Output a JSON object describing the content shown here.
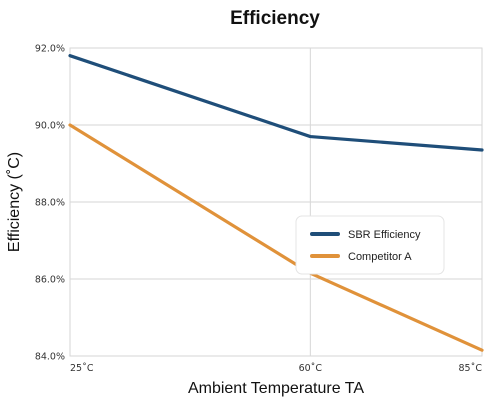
{
  "chart_data": {
    "type": "line",
    "title": "Efficiency",
    "xlabel": "Ambient Temperature TA",
    "ylabel": "Efficiency (˚C)",
    "x_tick_labels": [
      "25˚C",
      "60˚C",
      "85˚C"
    ],
    "x": [
      25,
      60,
      85
    ],
    "y_tick_labels": [
      "92.0%",
      "90.0%",
      "88.0%",
      "86.0%",
      "84.0%"
    ],
    "y_ticks": [
      92,
      90,
      88,
      86,
      84
    ],
    "ylim": [
      84,
      92
    ],
    "grid": true,
    "legend_position": "right",
    "series": [
      {
        "name": "SBR Efficiency",
        "color": "#1f4e79",
        "values": [
          91.8,
          89.7,
          89.35
        ]
      },
      {
        "name": "Competitor A",
        "color": "#e0923a",
        "values": [
          90.0,
          86.15,
          84.15
        ]
      }
    ]
  }
}
